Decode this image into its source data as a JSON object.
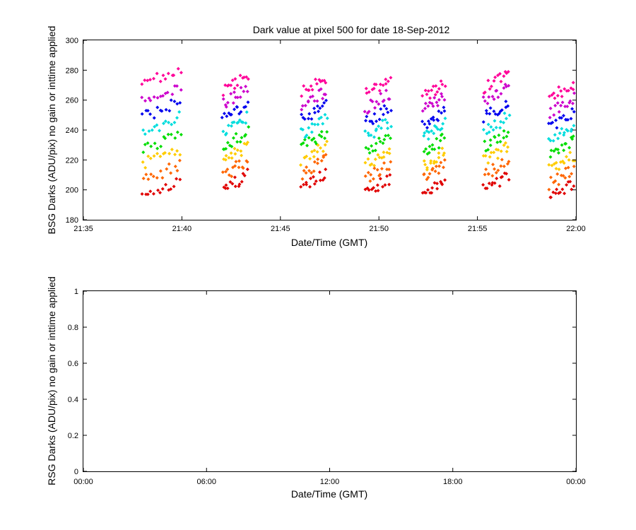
{
  "chart_data": [
    {
      "type": "scatter",
      "title": "Dark value at pixel 500 for date 18-Sep-2012",
      "xlabel": "Date/Time (GMT)",
      "ylabel": "BSG Darks (ADU/pix) no gain or inttime applied",
      "x_ticks": [
        "21:35",
        "21:40",
        "21:45",
        "21:50",
        "21:55",
        "22:00"
      ],
      "y_ticks": [
        "180",
        "200",
        "220",
        "240",
        "260",
        "280",
        "300"
      ],
      "xlim": [
        "21:35",
        "22:00"
      ],
      "ylim": [
        180,
        300
      ],
      "grid": false,
      "legend": "none",
      "marker": "diamond",
      "series_colors": [
        "#e00000",
        "#ff6600",
        "#ffcc00",
        "#00dd00",
        "#00dddd",
        "#0000ee",
        "#cc00cc",
        "#ff0099"
      ],
      "groups": [
        {
          "x_start": "21:38:00",
          "x_end": "21:39:55",
          "y_min": 197,
          "y_max": 281
        },
        {
          "x_start": "21:42:05",
          "x_end": "21:43:20",
          "y_min": 201,
          "y_max": 278
        },
        {
          "x_start": "21:46:05",
          "x_end": "21:47:20",
          "y_min": 202,
          "y_max": 276
        },
        {
          "x_start": "21:49:20",
          "x_end": "21:50:35",
          "y_min": 199,
          "y_max": 275
        },
        {
          "x_start": "21:52:15",
          "x_end": "21:53:20",
          "y_min": 198,
          "y_max": 273
        },
        {
          "x_start": "21:55:20",
          "x_end": "21:56:35",
          "y_min": 201,
          "y_max": 279
        },
        {
          "x_start": "21:58:40",
          "x_end": "21:59:55",
          "y_min": 195,
          "y_max": 272
        }
      ]
    },
    {
      "type": "scatter",
      "title": "",
      "xlabel": "Date/Time (GMT)",
      "ylabel": "RSG Darks (ADU/pix) no gain or inttime applied",
      "x_ticks": [
        "00:00",
        "06:00",
        "12:00",
        "18:00",
        "00:00"
      ],
      "y_ticks": [
        "0",
        "0.2",
        "0.4",
        "0.6",
        "0.8",
        "1"
      ],
      "ylim": [
        0,
        1
      ],
      "grid": false,
      "legend": "none",
      "points": []
    }
  ]
}
